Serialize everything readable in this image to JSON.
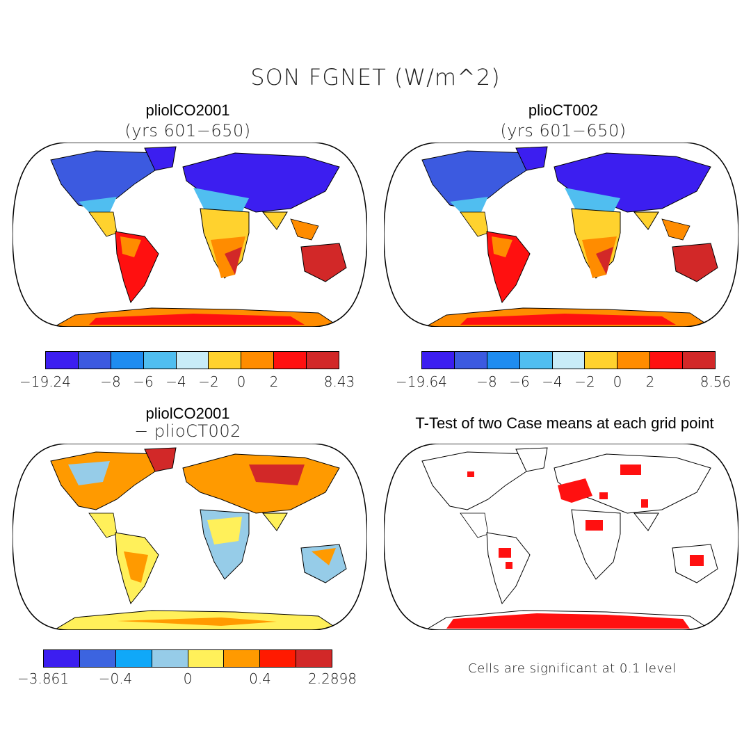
{
  "title": "SON FGNET (W/m^2)",
  "panels": [
    {
      "title": "pliolCO2001",
      "subtitle": "(yrs 601−650)"
    },
    {
      "title": "plioCT002",
      "subtitle": "(yrs 601−650)"
    },
    {
      "title": "pliolCO2001",
      "subtitle": "− plioCT002"
    },
    {
      "title": "T-Test of two Case means at each grid point",
      "subtitle": ""
    }
  ],
  "colorbars": [
    {
      "name": "colorbar-1",
      "colors": [
        "#3c1ef0",
        "#3c5ae0",
        "#1e8cf0",
        "#50bef0",
        "#c8ecf8",
        "#ffd22e",
        "#ff8c00",
        "#ff1010",
        "#d22828"
      ],
      "labels": [
        "−19.24",
        "−8",
        "−6",
        "−4",
        "−2",
        "0",
        "2",
        "8.43"
      ]
    },
    {
      "name": "colorbar-2",
      "colors": [
        "#3c1ef0",
        "#3c5ae0",
        "#1e8cf0",
        "#50bef0",
        "#c8ecf8",
        "#ffd22e",
        "#ff8c00",
        "#ff1010",
        "#d22828"
      ],
      "labels": [
        "−19.64",
        "−8",
        "−6",
        "−4",
        "−2",
        "0",
        "2",
        "8.56"
      ]
    },
    {
      "name": "colorbar-diff",
      "colors": [
        "#3c1ef0",
        "#3c64e0",
        "#10a8f8",
        "#96cce8",
        "#fff05a",
        "#ff9a00",
        "#ff1a00",
        "#d22828"
      ],
      "labels": [
        "−3.861",
        "−0.4",
        "0",
        "0.4",
        "2.2898"
      ]
    }
  ],
  "note": "Cells are significant at 0.1 level",
  "colors": {
    "land_cold": "#3c5ae0",
    "land_warm": "#d22828",
    "significant": "#ff1010",
    "coast": "#000000"
  }
}
